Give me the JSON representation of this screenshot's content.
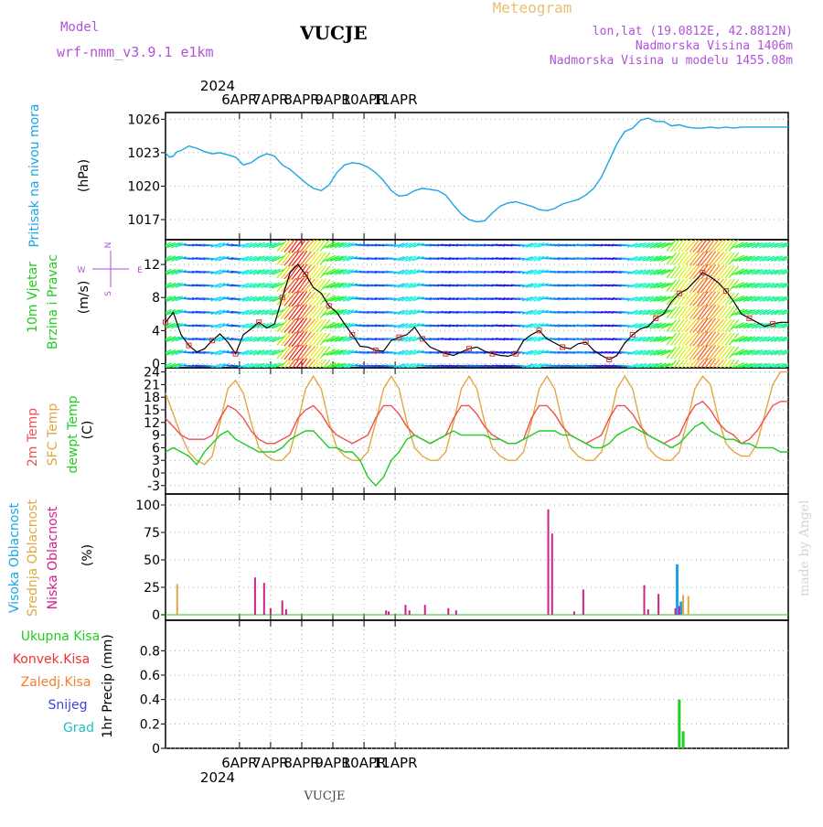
{
  "header": {
    "model_label": "Model",
    "model_name": "wrf-nmm_v3.9.1  e1km",
    "station": "VUCJE",
    "meteogram_label": "Meteogram",
    "location": "lon,lat (19.0812E, 42.8812N)",
    "altitude": "Nadmorska Visina 1406m",
    "model_altitude": "Nadmorska Visina u modelu 1455.08m",
    "year": "2024",
    "footer_station": "VUCJE",
    "credit": "made by Angel"
  },
  "colors": {
    "pressure": "#1aa6e6",
    "temp2m": "#f05050",
    "sfc_temp": "#e0a840",
    "dewpt": "#22cc22",
    "high_cloud": "#1aa6e6",
    "mid_cloud": "#e0a840",
    "low_cloud": "#d0208a",
    "precip_total": "#22cc22",
    "convective": "#f03030",
    "freezing": "#f08030",
    "snow": "#4040e0",
    "hail": "#20c0c0"
  },
  "days": [
    "6APR",
    "7APR",
    "8APR",
    "9APR",
    "10APR",
    "11APR"
  ],
  "panels": {
    "pressure": {
      "label": "Pritisak na nivou mora",
      "unit": "(hPa)"
    },
    "wind": {
      "label1": "10m Vjetar",
      "label2": "Brzina i Pravac",
      "unit": "(m/s)",
      "compass_n": "N",
      "compass_w": "W",
      "compass_e": "E",
      "compass_s": "S"
    },
    "temp": {
      "label1": "2m Temp",
      "label2": "SFC Temp",
      "label3": "dewpt Temp",
      "unit": "(C)"
    },
    "cloud": {
      "label1": "Visoka Oblacnost",
      "label2": "Srednja Oblacnost",
      "label3": "Niska Oblacnost",
      "unit": "(%)"
    },
    "precip": {
      "labels": [
        "Ukupna Kisa",
        "Konvek.Kisa",
        "Zaledj.Kisa",
        "Snijeg",
        "Grad"
      ],
      "ylabel": "1hr Precip (mm)"
    }
  },
  "chart_data": [
    {
      "type": "line",
      "name": "pressure",
      "ylim": [
        1015.2,
        1026.6
      ],
      "yticks": [
        1017,
        1020,
        1023,
        1026
      ],
      "x": [
        0,
        3,
        6,
        9,
        12,
        18,
        24,
        30,
        36,
        42,
        48,
        54,
        60,
        66,
        72,
        78,
        84,
        90,
        96,
        102,
        108,
        114,
        120,
        126,
        132,
        138,
        144,
        150,
        156,
        162,
        168,
        174,
        180,
        186,
        192,
        198,
        204,
        210,
        216,
        222,
        228,
        234,
        240,
        246,
        252,
        258,
        264,
        270,
        276,
        282,
        288,
        294,
        300,
        306,
        312,
        318,
        324,
        330,
        336,
        342,
        348,
        354,
        360,
        366,
        372,
        378,
        384,
        390,
        396,
        402,
        408,
        414,
        420,
        426,
        432,
        438,
        444,
        450,
        456,
        462,
        468,
        474,
        480
      ],
      "series": [
        {
          "values": [
            1023.0,
            1022.6,
            1022.7,
            1023.1,
            1023.2,
            1023.6,
            1023.4,
            1023.1,
            1022.9,
            1023.0,
            1022.8,
            1022.6,
            1021.9,
            1022.1,
            1022.6,
            1022.9,
            1022.7,
            1021.9,
            1021.5,
            1020.9,
            1020.3,
            1019.8,
            1019.6,
            1020.1,
            1021.2,
            1021.9,
            1022.1,
            1022.0,
            1021.7,
            1021.2,
            1020.5,
            1019.6,
            1019.1,
            1019.2,
            1019.6,
            1019.8,
            1019.7,
            1019.6,
            1019.2,
            1018.3,
            1017.5,
            1017.0,
            1016.8,
            1016.9,
            1017.6,
            1018.2,
            1018.5,
            1018.6,
            1018.4,
            1018.2,
            1017.9,
            1017.8,
            1018.0,
            1018.4,
            1018.6,
            1018.8,
            1019.2,
            1019.8,
            1020.8,
            1022.3,
            1023.8,
            1024.9,
            1025.2,
            1025.9,
            1026.1,
            1025.8,
            1025.8,
            1025.4,
            1025.5,
            1025.3,
            1025.2,
            1025.2,
            1025.3,
            1025.2,
            1025.3,
            1025.2,
            1025.3,
            1025.3,
            1025.3,
            1025.3,
            1025.3,
            1025.3,
            1025.3
          ]
        }
      ]
    },
    {
      "type": "line",
      "name": "wind_speed",
      "ylim": [
        -0.5,
        15
      ],
      "yticks": [
        0,
        4,
        8,
        12
      ],
      "x": [
        0,
        6,
        12,
        18,
        24,
        30,
        36,
        42,
        48,
        54,
        60,
        66,
        72,
        78,
        84,
        90,
        96,
        102,
        108,
        114,
        120,
        126,
        132,
        138,
        144,
        150,
        156,
        162,
        168,
        174,
        180,
        186,
        192,
        198,
        204,
        210,
        216,
        222,
        228,
        234,
        240,
        246,
        252,
        258,
        264,
        270,
        276,
        282,
        288,
        294,
        300,
        306,
        312,
        318,
        324,
        330,
        336,
        342,
        348,
        354,
        360,
        366,
        372,
        378,
        384,
        390,
        396,
        402,
        408,
        414,
        420,
        426,
        432,
        438,
        444,
        450,
        456,
        462,
        468,
        474,
        480
      ],
      "series": [
        {
          "values": [
            5.0,
            6.2,
            3.5,
            2.2,
            1.4,
            1.8,
            2.8,
            3.6,
            2.6,
            1.2,
            3.5,
            4.2,
            5.0,
            4.3,
            4.8,
            8.0,
            11.0,
            12.0,
            10.8,
            9.2,
            8.5,
            7.0,
            6.2,
            4.8,
            3.5,
            2.1,
            2.0,
            1.6,
            1.5,
            2.8,
            3.2,
            3.5,
            4.4,
            3.0,
            2.0,
            1.6,
            1.2,
            1.0,
            1.4,
            1.8,
            2.0,
            1.5,
            1.2,
            1.0,
            0.9,
            1.2,
            2.8,
            3.5,
            4.0,
            3.0,
            2.5,
            2.0,
            1.8,
            2.4,
            2.6,
            1.6,
            1.0,
            0.5,
            1.0,
            2.5,
            3.5,
            4.2,
            4.5,
            5.5,
            6.0,
            7.5,
            8.5,
            9.0,
            10.0,
            11.0,
            10.5,
            9.8,
            8.8,
            7.5,
            6.0,
            5.5,
            5.0,
            4.5,
            4.8,
            5.0,
            5.0
          ]
        }
      ]
    },
    {
      "type": "line",
      "name": "temperature",
      "ylim": [
        -5,
        25
      ],
      "yticks": [
        -3,
        0,
        3,
        6,
        9,
        12,
        15,
        18,
        21,
        24
      ],
      "x": [
        0,
        6,
        12,
        18,
        24,
        30,
        36,
        42,
        48,
        54,
        60,
        66,
        72,
        78,
        84,
        90,
        96,
        102,
        108,
        114,
        120,
        126,
        132,
        138,
        144,
        150,
        156,
        162,
        168,
        174,
        180,
        186,
        192,
        198,
        204,
        210,
        216,
        222,
        228,
        234,
        240,
        246,
        252,
        258,
        264,
        270,
        276,
        282,
        288,
        294,
        300,
        306,
        312,
        318,
        324,
        330,
        336,
        342,
        348,
        354,
        360,
        366,
        372,
        378,
        384,
        390,
        396,
        402,
        408,
        414,
        420,
        426,
        432,
        438,
        444,
        450,
        456,
        462,
        468,
        474,
        480
      ],
      "series": [
        {
          "name": "2m Temp",
          "values": [
            13,
            11,
            9,
            8,
            8,
            8,
            9,
            13,
            16,
            15,
            13,
            10,
            8,
            7,
            7,
            8,
            9,
            13,
            15,
            16,
            14,
            11,
            9,
            8,
            7,
            8,
            9,
            13,
            16,
            16,
            14,
            11,
            9,
            8,
            7,
            8,
            9,
            13,
            16,
            16,
            14,
            11,
            9,
            8,
            7,
            7,
            8,
            13,
            16,
            16,
            14,
            11,
            9,
            8,
            7,
            8,
            9,
            13,
            16,
            16,
            14,
            11,
            9,
            8,
            7,
            8,
            9,
            13,
            16,
            17,
            15,
            12,
            10,
            9,
            7,
            8,
            10,
            13,
            16,
            17,
            17
          ]
        },
        {
          "name": "SFC Temp",
          "values": [
            19,
            14,
            9,
            5,
            3,
            2,
            4,
            12,
            20,
            22,
            19,
            12,
            6,
            4,
            3,
            3,
            5,
            12,
            20,
            23,
            20,
            12,
            6,
            4,
            3,
            3,
            5,
            12,
            20,
            23,
            20,
            12,
            6,
            4,
            3,
            3,
            5,
            12,
            20,
            23,
            20,
            12,
            6,
            4,
            3,
            3,
            5,
            12,
            20,
            23,
            20,
            12,
            6,
            4,
            3,
            3,
            5,
            12,
            20,
            23,
            20,
            12,
            6,
            4,
            3,
            3,
            5,
            12,
            20,
            23,
            21,
            13,
            7,
            5,
            4,
            4,
            7,
            14,
            21,
            24,
            24
          ]
        },
        {
          "name": "dewpt Temp",
          "values": [
            5,
            6,
            5,
            4,
            2,
            5,
            7,
            9,
            10,
            8,
            7,
            6,
            5,
            5,
            5,
            6,
            8,
            9,
            10,
            10,
            8,
            6,
            6,
            5,
            5,
            3,
            -1,
            -3,
            -1,
            3,
            5,
            8,
            9,
            8,
            7,
            8,
            9,
            10,
            9,
            9,
            9,
            9,
            8,
            8,
            7,
            7,
            8,
            9,
            10,
            10,
            10,
            9,
            9,
            8,
            7,
            6,
            6,
            7,
            9,
            10,
            11,
            10,
            9,
            8,
            7,
            6,
            7,
            9,
            11,
            12,
            10,
            9,
            8,
            8,
            7,
            7,
            6,
            6,
            6,
            5,
            5
          ]
        }
      ]
    },
    {
      "type": "bar",
      "name": "cloud_cover",
      "ylim": [
        -5,
        110
      ],
      "yticks": [
        0,
        25,
        50,
        75,
        100
      ],
      "series": [
        {
          "name": "Visoka Oblacnost",
          "x": [
            394,
            397
          ],
          "values": [
            46,
            12
          ]
        },
        {
          "name": "Srednja Oblacnost",
          "x": [
            9,
            399,
            403
          ],
          "values": [
            28,
            18,
            17
          ]
        },
        {
          "name": "Niska Oblacnost",
          "x": [
            69,
            76,
            81,
            90,
            93,
            172,
            170,
            185,
            188,
            200,
            218,
            224,
            295,
            298,
            315,
            322,
            369,
            372,
            380,
            393,
            396
          ],
          "values": [
            34,
            29,
            6,
            13,
            5,
            3,
            4,
            9,
            4,
            9,
            6,
            4,
            96,
            74,
            3,
            23,
            27,
            5,
            19,
            6,
            8
          ]
        }
      ]
    },
    {
      "type": "bar",
      "name": "precip",
      "ylim": [
        0,
        1.05
      ],
      "yticks": [
        0,
        0.2,
        0.4,
        0.6,
        0.8
      ],
      "series": [
        {
          "name": "Ukupna Kisa",
          "x": [
            396,
            399
          ],
          "values": [
            0.4,
            0.14
          ]
        },
        {
          "name": "Konvek.Kisa",
          "x": [],
          "values": []
        },
        {
          "name": "Zaledj.Kisa",
          "x": [],
          "values": []
        },
        {
          "name": "Snijeg",
          "x": [],
          "values": []
        },
        {
          "name": "Grad",
          "x": [],
          "values": []
        }
      ]
    }
  ]
}
